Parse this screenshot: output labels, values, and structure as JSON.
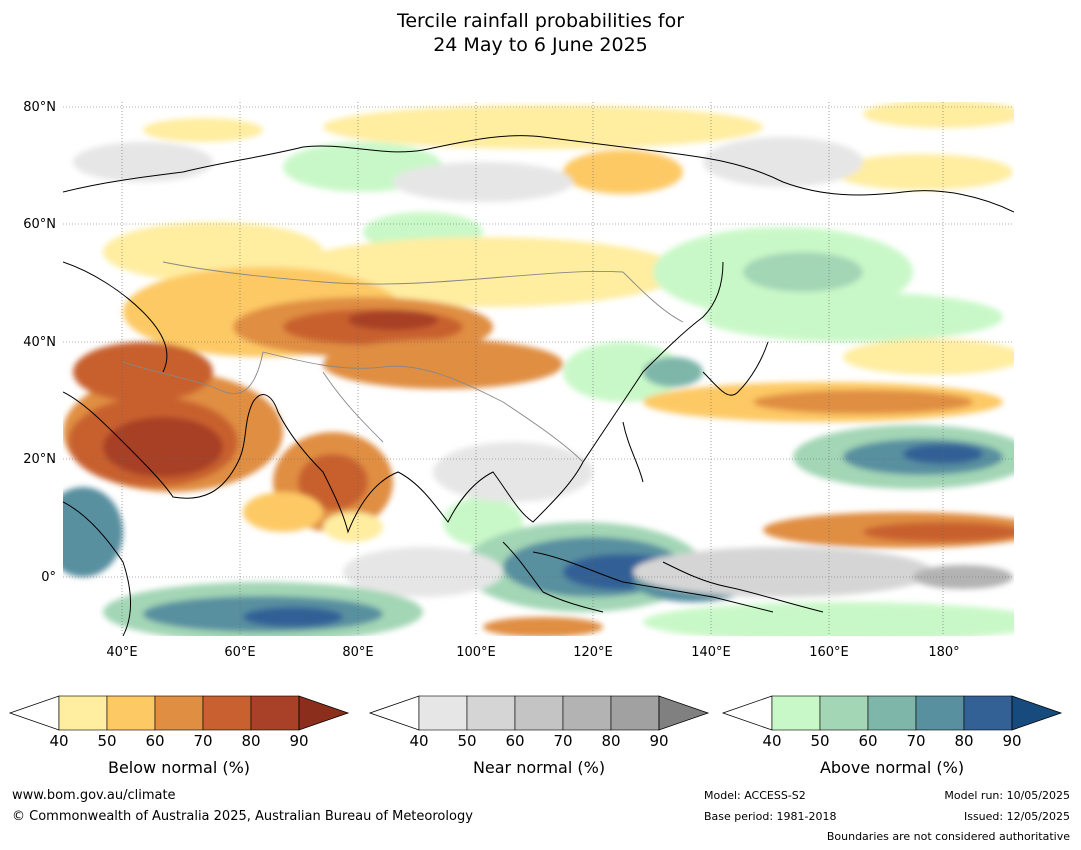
{
  "title": {
    "line1": "Tercile rainfall probabilities for",
    "line2": "24 May to 6 June 2025"
  },
  "map": {
    "lon_range": [
      30,
      191
    ],
    "lat_range": [
      -10,
      81
    ],
    "lat_labels": [
      "80°N",
      "60°N",
      "40°N",
      "20°N",
      "0°"
    ],
    "lon_labels": [
      "40°E",
      "60°E",
      "80°E",
      "100°E",
      "120°E",
      "140°E",
      "160°E",
      "180°"
    ],
    "gridlines": true
  },
  "colorbars": [
    {
      "title": "Below normal (%)",
      "ticks": [
        "40",
        "50",
        "60",
        "70",
        "80",
        "90"
      ],
      "colors": [
        "#ffeda0",
        "#fdc965",
        "#e08e42",
        "#c8612f",
        "#a84127",
        "#8b2e1c"
      ]
    },
    {
      "title": "Near normal (%)",
      "ticks": [
        "40",
        "50",
        "60",
        "70",
        "80",
        "90"
      ],
      "colors": [
        "#e6e6e6",
        "#d5d5d5",
        "#c4c4c4",
        "#b3b3b3",
        "#a1a1a1",
        "#808080"
      ]
    },
    {
      "title": "Above normal (%)",
      "ticks": [
        "40",
        "50",
        "60",
        "70",
        "80",
        "90"
      ],
      "colors": [
        "#c9f8c8",
        "#a3d6b5",
        "#7eb6aa",
        "#5890a0",
        "#336196",
        "#174b7e"
      ]
    }
  ],
  "footer": {
    "website": "www.bom.gov.au/climate",
    "copyright": "© Commonwealth of Australia 2025, Australian Bureau of Meteorology",
    "model": "Model: ACCESS-S2",
    "base_period": "Base period: 1981-2018",
    "model_run": "Model run: 10/05/2025",
    "issued": "Issued: 12/05/2025",
    "disclaimer": "Boundaries are not considered authoritative"
  }
}
